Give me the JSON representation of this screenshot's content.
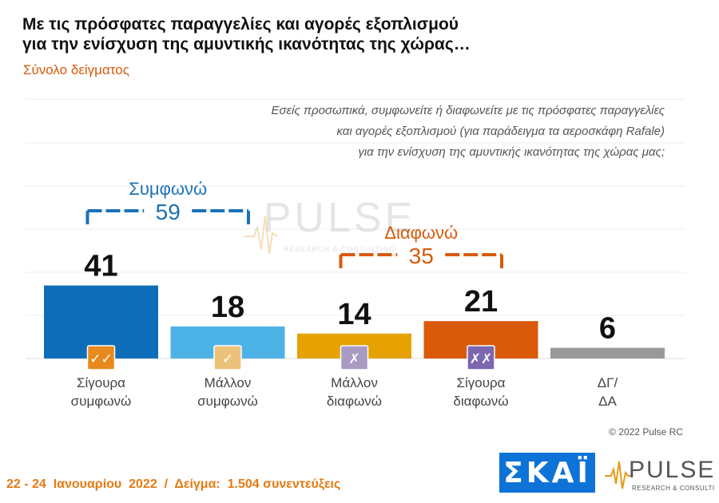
{
  "title_line1": "Με τις πρόσφατες παραγγελίες και αγορές εξοπλισμού",
  "title_line2": "για την ενίσχυση της αμυντικής ικανότητας της χώρας…",
  "subtitle": "Σύνολο δείγματος",
  "question": [
    "Εσείς προσωπικά, συμφωνείτε ή διαφωνείτε με τις πρόσφατες παραγγελίες",
    "και αγορές εξοπλισμού (για παράδειγμα τα αεροσκάφη Rafale)",
    "για την ενίσχυση της αμυντικής ικανότητας της χώρας μας;"
  ],
  "copyright": "© 2022 Pulse RC",
  "footer": "22 - 24  Ιανουαρίου  2022  /  Δείγμα:  1.504 συνεντεύξεις",
  "logos": {
    "skai": "ΣΚΑΪ",
    "pulse": "PULSE",
    "pulse_tagline": "RESEARCH & CONSULTING",
    "watermark": "PULSE",
    "watermark_tagline": "RESEARCH & CONSULTING"
  },
  "colors": {
    "dark_blue": "#0e6db8",
    "light_blue": "#4db3e6",
    "amber": "#e5a200",
    "dark_orange": "#d95a0b",
    "grey": "#999999",
    "agree_bracket": "#1a72b8",
    "disagree_bracket": "#d95a0b"
  },
  "chart_data": {
    "type": "bar",
    "categories": [
      [
        "Σίγουρα",
        "συμφωνώ"
      ],
      [
        "Μάλλον",
        "συμφωνώ"
      ],
      [
        "Μάλλον",
        "διαφωνώ"
      ],
      [
        "Σίγουρα",
        "διαφωνώ"
      ],
      [
        "ΔΓ/",
        "ΔΑ"
      ]
    ],
    "values": [
      41,
      18,
      14,
      21,
      6
    ],
    "bar_colors": [
      "#0e6db8",
      "#4db3e6",
      "#e5a200",
      "#d95a0b",
      "#999999"
    ],
    "icons": [
      {
        "name": "double-check-icon",
        "glyph": "✓✓",
        "bg": "#e68a1e"
      },
      {
        "name": "check-icon",
        "glyph": "✓",
        "bg": "#ecc27a"
      },
      {
        "name": "cross-icon",
        "glyph": "✗",
        "bg": "#a99bc4"
      },
      {
        "name": "double-cross-icon",
        "glyph": "✗✗",
        "bg": "#7c66b0"
      },
      null
    ],
    "groups": [
      {
        "label": "Συμφωνώ",
        "total": "59",
        "from": 0,
        "to": 1,
        "color": "#1a72b8"
      },
      {
        "label": "Διαφωνώ",
        "total": "35",
        "from": 2,
        "to": 3,
        "color": "#d95a0b"
      }
    ],
    "ylim": [
      0,
      100
    ],
    "grid": true
  }
}
